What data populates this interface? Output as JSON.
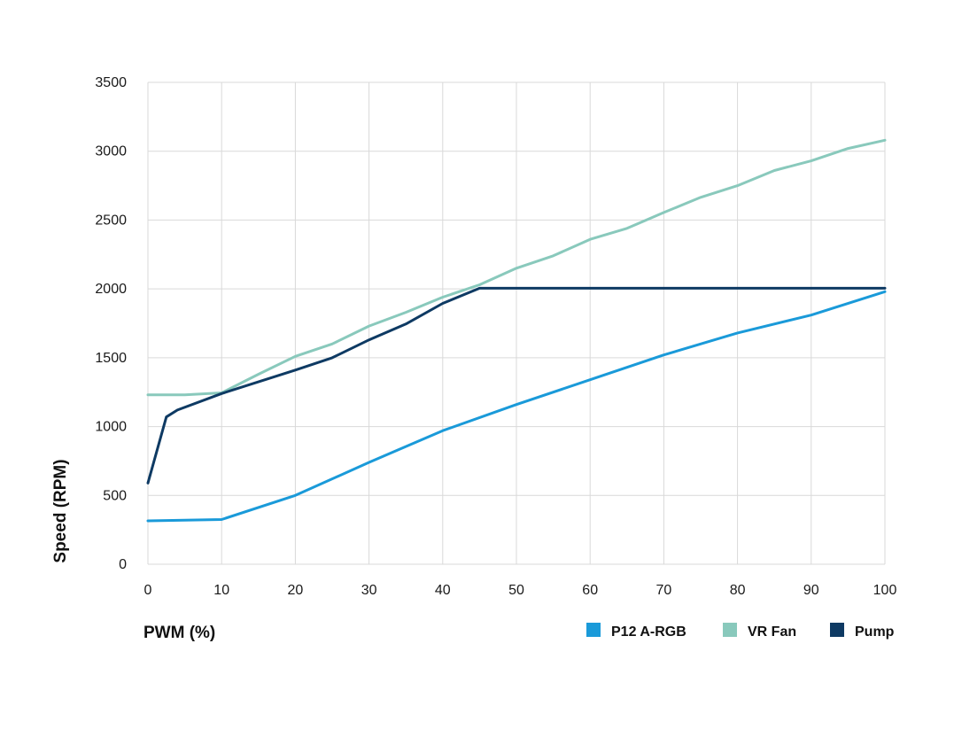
{
  "chart_data": {
    "type": "line",
    "xlabel": "PWM  (%)",
    "ylabel": "Speed  (RPM)",
    "xlim": [
      0,
      100
    ],
    "ylim": [
      0,
      3500
    ],
    "x_ticks": [
      0,
      10,
      20,
      30,
      40,
      50,
      60,
      70,
      80,
      90,
      100
    ],
    "y_ticks": [
      0,
      500,
      1000,
      1500,
      2000,
      2500,
      3000,
      3500
    ],
    "grid": true,
    "legend_position": "bottom-right",
    "series": [
      {
        "name": "P12 A-RGB",
        "color": "#1a9ad9",
        "x": [
          0,
          5,
          10,
          20,
          30,
          40,
          50,
          60,
          70,
          80,
          90,
          100
        ],
        "y": [
          315,
          320,
          325,
          500,
          740,
          970,
          1160,
          1340,
          1520,
          1680,
          1810,
          1980
        ]
      },
      {
        "name": "VR Fan",
        "color": "#89c9bc",
        "x": [
          0,
          5,
          10,
          15,
          20,
          25,
          30,
          35,
          40,
          45,
          50,
          55,
          60,
          65,
          70,
          75,
          80,
          85,
          90,
          95,
          100
        ],
        "y": [
          1230,
          1230,
          1245,
          1380,
          1510,
          1600,
          1730,
          1830,
          1940,
          2030,
          2150,
          2240,
          2360,
          2440,
          2555,
          2665,
          2750,
          2860,
          2930,
          3020,
          3080
        ]
      },
      {
        "name": "Pump",
        "color": "#0e3a63",
        "x": [
          0,
          2.5,
          4,
          10,
          20,
          25,
          30,
          35,
          40,
          45,
          50,
          60,
          70,
          80,
          90,
          100
        ],
        "y": [
          590,
          1070,
          1120,
          1240,
          1410,
          1500,
          1630,
          1745,
          1895,
          2005,
          2005,
          2005,
          2005,
          2005,
          2005,
          2005
        ]
      }
    ]
  }
}
